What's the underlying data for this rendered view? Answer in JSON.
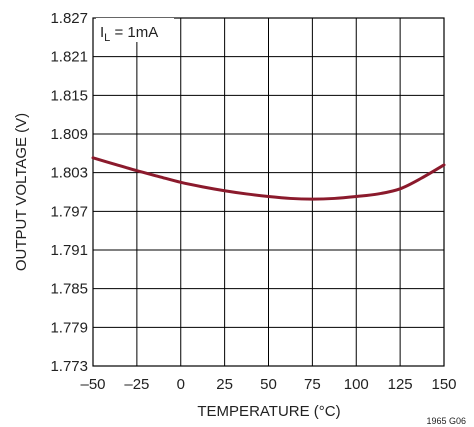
{
  "chart_data": {
    "type": "line",
    "title": "",
    "xlabel": "TEMPERATURE (°C)",
    "ylabel": "OUTPUT VOLTAGE (V)",
    "xlim": [
      -50,
      150
    ],
    "ylim": [
      1.773,
      1.827
    ],
    "x_ticks": [
      -50,
      -25,
      0,
      25,
      50,
      75,
      100,
      125,
      150
    ],
    "x_tick_labels": [
      "–50",
      "–25",
      "0",
      "25",
      "50",
      "75",
      "100",
      "125",
      "150"
    ],
    "y_ticks": [
      1.773,
      1.779,
      1.785,
      1.791,
      1.797,
      1.803,
      1.809,
      1.815,
      1.821,
      1.827
    ],
    "y_tick_labels": [
      "1.773",
      "1.779",
      "1.785",
      "1.791",
      "1.797",
      "1.803",
      "1.809",
      "1.815",
      "1.821",
      "1.827"
    ],
    "grid": true,
    "annotation": {
      "label": "I",
      "subscript": "L",
      "rest": " = 1mA"
    },
    "figure_code": "1965 G06",
    "line_color": "#8b1a2c",
    "series": [
      {
        "x": [
          -50,
          -37.5,
          -25,
          -12.5,
          0,
          12.5,
          25,
          37.5,
          50,
          62.5,
          75,
          87.5,
          100,
          112.5,
          125,
          137.5,
          150
        ],
        "values": [
          1.8053,
          1.8043,
          1.8033,
          1.8024,
          1.8015,
          1.8008,
          1.8002,
          1.7997,
          1.7993,
          1.799,
          1.7989,
          1.799,
          1.7993,
          1.7997,
          1.8005,
          1.8022,
          1.8042
        ]
      }
    ]
  }
}
